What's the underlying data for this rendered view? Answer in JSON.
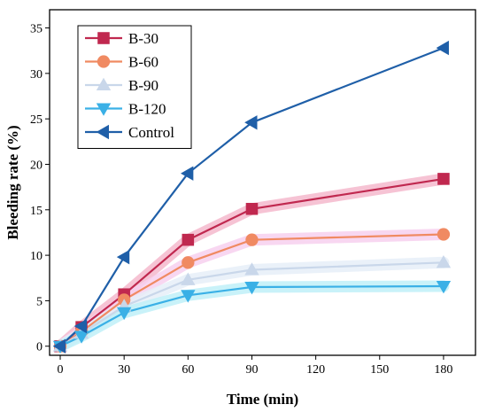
{
  "chart_data": {
    "type": "line",
    "xlabel": "Time (min)",
    "ylabel": "Bleeding rate (%)",
    "xlim": [
      -5,
      195
    ],
    "ylim": [
      -1,
      37
    ],
    "xticks": [
      0,
      30,
      60,
      90,
      120,
      150,
      180
    ],
    "yticks": [
      0,
      5,
      10,
      15,
      20,
      25,
      30,
      35
    ],
    "grid": false,
    "legend_position": "top-left",
    "series": [
      {
        "name": "B-30",
        "marker": "square",
        "color": "#c0284f",
        "glow": "#f4b8cc",
        "x": [
          0,
          10,
          30,
          60,
          90,
          180
        ],
        "y": [
          0,
          2.1,
          5.7,
          11.7,
          15.1,
          18.4
        ]
      },
      {
        "name": "B-60",
        "marker": "circle",
        "color": "#f08a62",
        "glow": "#f7d0ee",
        "x": [
          0,
          10,
          30,
          60,
          90,
          180
        ],
        "y": [
          0,
          1.6,
          5.1,
          9.2,
          11.7,
          12.3
        ]
      },
      {
        "name": "B-90",
        "marker": "triangle-up",
        "color": "#c9d7ea",
        "glow": "#e6eef8",
        "x": [
          0,
          10,
          30,
          60,
          90,
          180
        ],
        "y": [
          0,
          1.4,
          4.4,
          7.3,
          8.4,
          9.2
        ]
      },
      {
        "name": "B-120",
        "marker": "triangle-down",
        "color": "#3ab0e6",
        "glow": "#bff0f8",
        "x": [
          0,
          10,
          30,
          60,
          90,
          180
        ],
        "y": [
          0,
          1.1,
          3.7,
          5.6,
          6.5,
          6.6
        ]
      },
      {
        "name": "Control",
        "marker": "triangle-left",
        "color": "#1f5fa8",
        "glow": "",
        "x": [
          0,
          10,
          30,
          60,
          90,
          180
        ],
        "y": [
          0,
          2.2,
          9.8,
          19.0,
          24.6,
          32.8
        ]
      }
    ]
  }
}
